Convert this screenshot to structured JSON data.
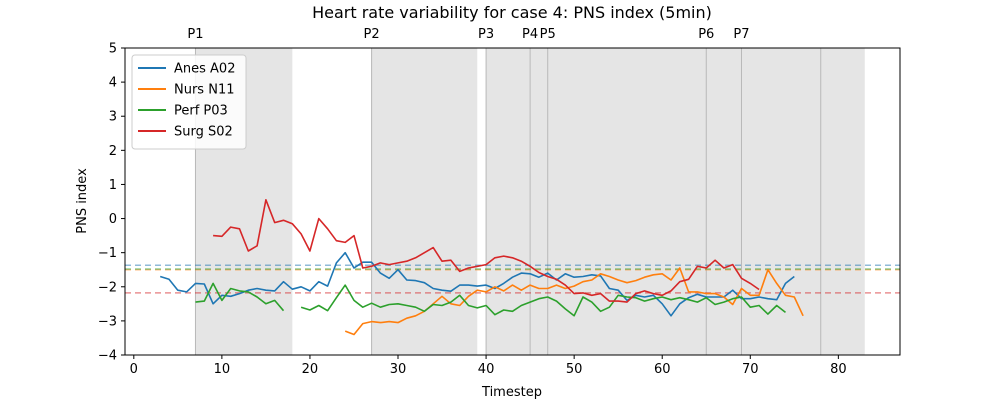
{
  "chart_data": {
    "type": "line",
    "title": "Heart rate variability for case 4: PNS index (5min)",
    "xlabel": "Timestep",
    "ylabel": "PNS index",
    "xlim": [
      -1,
      87
    ],
    "ylim": [
      -4,
      5
    ],
    "xticks": [
      0,
      10,
      20,
      30,
      40,
      50,
      60,
      70,
      80
    ],
    "yticks": [
      -4,
      -3,
      -2,
      -1,
      0,
      1,
      2,
      3,
      4,
      5
    ],
    "grid": false,
    "legend_position": "upper-left",
    "phases": [
      {
        "label": "P1",
        "start": 7,
        "end": 18
      },
      {
        "label": "P2",
        "start": 27,
        "end": 39
      },
      {
        "label": "P3",
        "start": 40,
        "end": 45
      },
      {
        "label": "P4",
        "start": 45,
        "end": 47
      },
      {
        "label": "P5",
        "start": 47,
        "end": 65
      },
      {
        "label": "P6",
        "start": 65,
        "end": 69
      },
      {
        "label": "P7",
        "start": 69,
        "end": 78
      },
      {
        "label": "",
        "start": 78,
        "end": 83
      }
    ],
    "series": [
      {
        "name": "Anes A02",
        "color": "#1f77b4",
        "baseline": -1.37,
        "start_x": 3,
        "values": [
          -1.7,
          -1.78,
          -2.1,
          -2.15,
          -1.9,
          -1.92,
          -2.5,
          -2.25,
          -2.28,
          -2.2,
          -2.1,
          -2.05,
          -2.1,
          -2.12,
          -1.85,
          -2.07,
          -2.0,
          -2.12,
          -1.85,
          -1.98,
          -1.3,
          -1.0,
          -1.45,
          -1.28,
          -1.28,
          -1.6,
          -1.75,
          -1.5,
          -1.8,
          -1.82,
          -1.88,
          -2.05,
          -2.1,
          -2.13,
          -1.95,
          -1.95,
          -1.98,
          -1.95,
          -2.05,
          -1.9,
          -1.72,
          -1.6,
          -1.62,
          -1.72,
          -1.6,
          -1.8,
          -1.62,
          -1.72,
          -1.7,
          -1.65,
          -1.68,
          -2.05,
          -2.1,
          -2.4,
          -2.25,
          -2.3,
          -2.25,
          -2.5,
          -2.85,
          -2.5,
          -2.32,
          -2.22,
          -2.3,
          -2.3,
          -2.3,
          -2.1,
          -2.35,
          -2.35,
          -2.3,
          -2.35,
          -2.38,
          -1.9,
          -1.7
        ]
      },
      {
        "name": "Nurs N11",
        "color": "#ff7f0e",
        "baseline": -1.5,
        "start_x": 24,
        "values": [
          -3.3,
          -3.4,
          -3.08,
          -3.02,
          -3.05,
          -3.02,
          -3.05,
          -2.92,
          -2.85,
          -2.72,
          -2.5,
          -2.28,
          -2.5,
          -2.55,
          -2.28,
          -2.1,
          -2.15,
          -2.0,
          -2.12,
          -1.95,
          -2.1,
          -1.95,
          -2.05,
          -2.05,
          -1.95,
          -2.05,
          -1.98,
          -1.85,
          -1.8,
          -1.62,
          -1.7,
          -1.8,
          -1.88,
          -1.82,
          -1.72,
          -1.65,
          -1.62,
          -1.8,
          -1.45,
          -2.15,
          -2.15,
          -2.2,
          -2.2,
          -2.3,
          -2.52,
          -2.05,
          -2.25,
          -2.25,
          -1.5,
          -1.9,
          -2.25,
          -2.3,
          -2.85
        ]
      },
      {
        "name": "Perf P03",
        "color": "#2ca02c",
        "baseline": -1.48,
        "start_x": 7,
        "values": [
          -2.45,
          -2.42,
          -1.9,
          -2.4,
          -2.05,
          -2.12,
          -2.15,
          -2.3,
          -2.5,
          -2.4,
          -2.7,
          null,
          -2.6,
          -2.68,
          -2.55,
          -2.7,
          -2.32,
          -1.95,
          -2.4,
          -2.6,
          -2.48,
          -2.6,
          -2.52,
          -2.5,
          -2.55,
          -2.6,
          -2.72,
          -2.52,
          -2.55,
          -2.45,
          -2.25,
          -2.55,
          -2.62,
          -2.55,
          -2.82,
          -2.68,
          -2.72,
          -2.55,
          -2.45,
          -2.35,
          -2.3,
          -2.42,
          -2.65,
          -2.85,
          -2.3,
          -2.45,
          -2.72,
          -2.6,
          -2.25,
          -2.3,
          -2.32,
          -2.42,
          -2.35,
          -2.3,
          -2.38,
          -2.32,
          -2.38,
          -2.45,
          -2.32,
          -2.52,
          -2.45,
          -2.35,
          -2.3,
          -2.6,
          -2.55,
          -2.8,
          -2.55,
          -2.75
        ]
      },
      {
        "name": "Surg S02",
        "color": "#d62728",
        "baseline": -2.18,
        "start_x": 9,
        "values": [
          -0.5,
          -0.52,
          -0.25,
          -0.3,
          -0.95,
          -0.8,
          0.55,
          -0.12,
          -0.05,
          -0.15,
          -0.45,
          -0.95,
          0.0,
          -0.3,
          -0.65,
          -0.7,
          -0.5,
          -1.45,
          -1.4,
          -1.3,
          -1.35,
          -1.3,
          -1.25,
          -1.15,
          -1.0,
          -0.85,
          -1.25,
          -1.22,
          -1.55,
          -1.45,
          -1.4,
          -1.35,
          -1.15,
          -1.1,
          -1.15,
          -1.25,
          -1.4,
          -1.58,
          -1.7,
          -1.78,
          -1.95,
          -2.2,
          -2.18,
          -2.25,
          -2.2,
          -2.42,
          -2.42,
          -2.45,
          -2.2,
          -2.12,
          -2.2,
          -2.25,
          -2.12,
          -1.85,
          -1.78,
          -1.4,
          -1.45,
          -1.22,
          -1.45,
          -1.35,
          -1.75,
          -1.9,
          -2.08
        ]
      }
    ]
  }
}
